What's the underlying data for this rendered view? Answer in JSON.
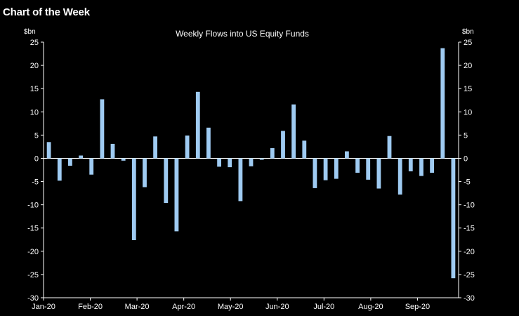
{
  "header": {
    "title": "Chart of the Week"
  },
  "chart_data": {
    "type": "bar",
    "title": "Weekly Flows into US Equity Funds",
    "ylabel_left": "$bn",
    "ylabel_right": "$bn",
    "ylim": [
      -30,
      25
    ],
    "yticks": [
      25,
      20,
      15,
      10,
      5,
      0,
      -5,
      -10,
      -15,
      -20,
      -25,
      -30
    ],
    "x_tick_labels": [
      "Jan-20",
      "Feb-20",
      "Mar-20",
      "Apr-20",
      "May-20",
      "Jun-20",
      "Jul-20",
      "Aug-20",
      "Sep-20"
    ],
    "bar_color": "#9fcbf2",
    "background": "#000000",
    "values": [
      3.5,
      -4.8,
      -1.6,
      0.6,
      -3.5,
      12.7,
      3.1,
      -0.5,
      -17.6,
      -6.2,
      4.7,
      -9.6,
      -15.7,
      4.9,
      14.3,
      6.6,
      -1.8,
      -1.9,
      -9.2,
      -1.7,
      -0.3,
      2.2,
      5.9,
      11.6,
      3.8,
      -6.4,
      -4.7,
      -4.4,
      1.5,
      -3.1,
      -4.6,
      -6.5,
      4.8,
      -7.8,
      -2.8,
      -3.8,
      -3.1,
      23.7,
      -25.8
    ]
  }
}
